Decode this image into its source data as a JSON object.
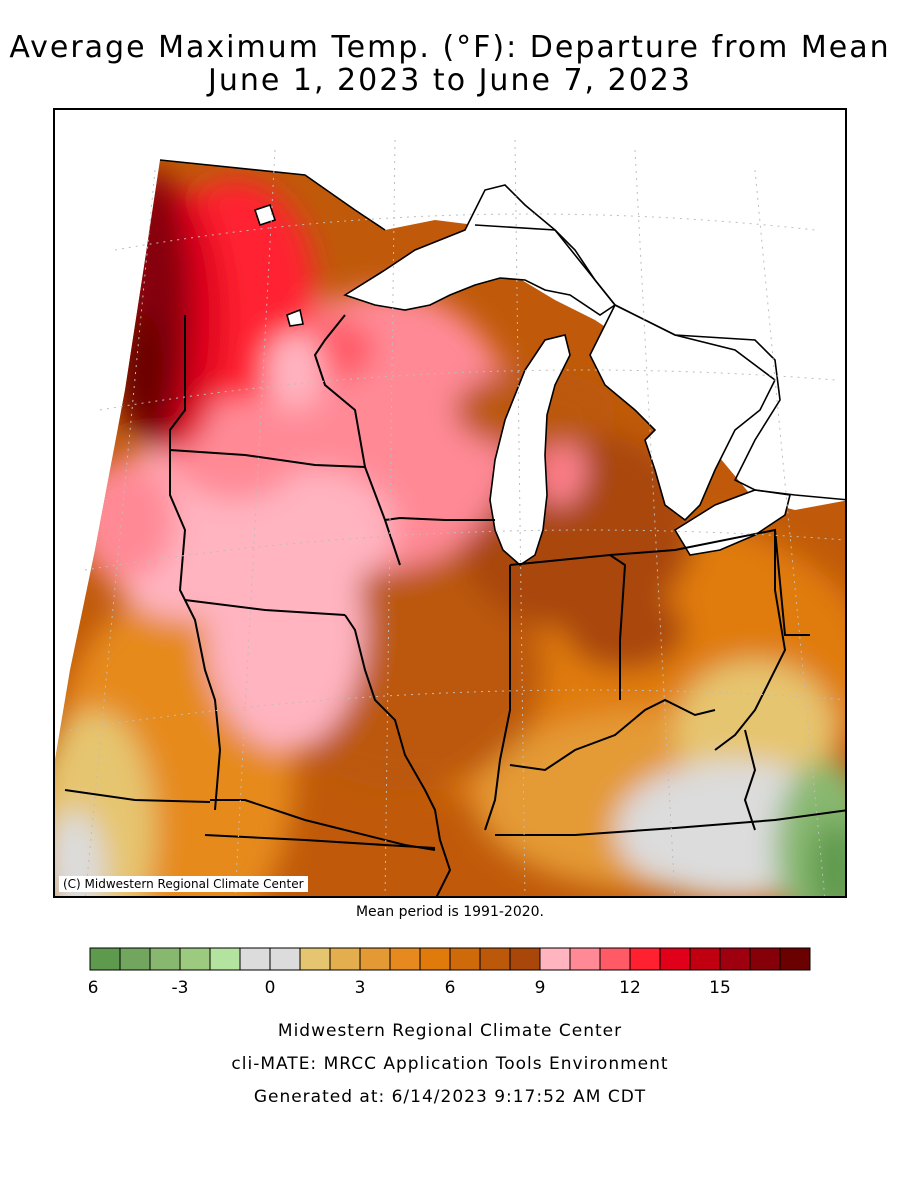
{
  "title": {
    "line1": "Average Maximum Temp. (°F): Departure from Mean",
    "line2": "June 1, 2023 to June 7, 2023"
  },
  "map": {
    "credit": "(C) Midwestern Regional Climate Center",
    "mean_period": "Mean period is 1991-2020."
  },
  "legend": {
    "colors": [
      "#5e9a4e",
      "#72a65f",
      "#88b870",
      "#9cca7f",
      "#b3e39f",
      "#dcdcdc",
      "#dcdcdc",
      "#e6c570",
      "#e4ae4f",
      "#e49a34",
      "#e68a1f",
      "#e07b0b",
      "#cf6a0b",
      "#bb580a",
      "#a9470a",
      "#ffb4c0",
      "#ff8a96",
      "#ff5a66",
      "#ff2030",
      "#e0001a",
      "#c00010",
      "#9f0010",
      "#850008",
      "#6a0000"
    ],
    "tick_labels": [
      "-6",
      "-3",
      "0",
      "3",
      "6",
      "9",
      "12",
      "15"
    ],
    "tick_values": [
      -6,
      -3,
      0,
      3,
      6,
      9,
      12,
      15
    ],
    "min": -6,
    "max": 18
  },
  "footer": {
    "line1": "Midwestern Regional Climate Center",
    "line2": "cli-MATE: MRCC Application Tools Environment",
    "line3": "Generated at: 6/14/2023 9:17:52 AM CDT"
  }
}
